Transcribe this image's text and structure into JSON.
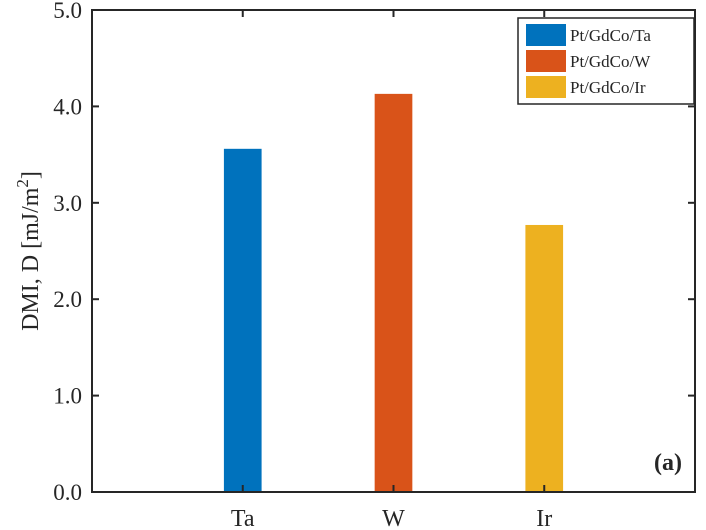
{
  "chart_data": {
    "type": "bar",
    "categories": [
      "Ta",
      "W",
      "Ir"
    ],
    "values": [
      3.56,
      4.13,
      2.77
    ],
    "series_names": [
      "Pt/GdCo/Ta",
      "Pt/GdCo/W",
      "Pt/GdCo/Ir"
    ],
    "colors": [
      "#0072BD",
      "#D95319",
      "#EDB120"
    ],
    "ylabel_main": "DMI, D [mJ/m",
    "ylabel_sup": "2",
    "ylabel_end": "]",
    "ylim": [
      0,
      5
    ],
    "yticks": [
      0,
      1,
      2,
      3,
      4,
      5
    ],
    "ytick_labels": [
      "0.0",
      "1.0",
      "2.0",
      "3.0",
      "4.0",
      "5.0"
    ],
    "xlim": [
      0,
      4
    ],
    "legend_position": "top-right",
    "annotation": "(a)",
    "grid": false
  }
}
